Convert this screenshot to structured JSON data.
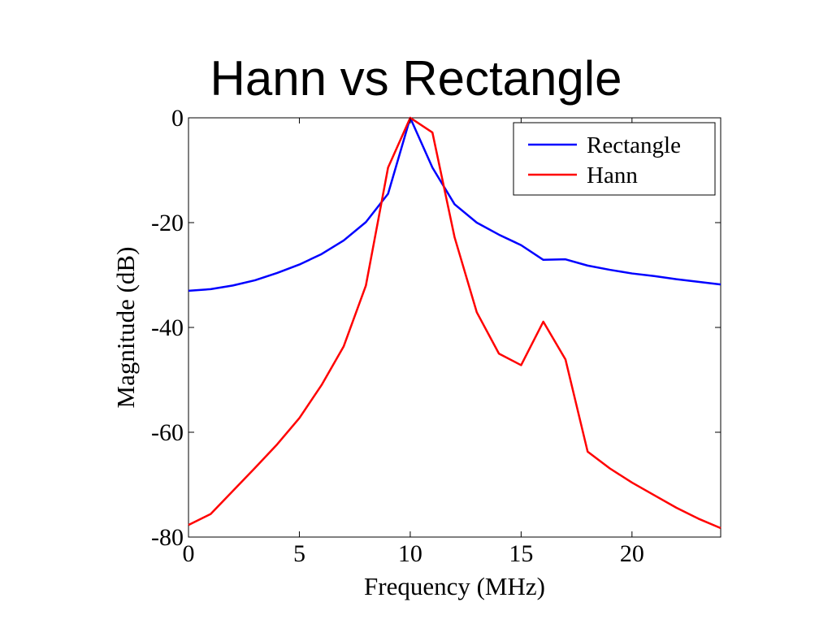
{
  "chart_data": {
    "type": "line",
    "title": "Hann vs Rectangle",
    "xlabel": "Frequency (MHz)",
    "ylabel": "Magnitude (dB)",
    "xlim": [
      0,
      24
    ],
    "ylim": [
      -80,
      0
    ],
    "xticks": [
      0,
      5,
      10,
      15,
      20
    ],
    "yticks": [
      0,
      -20,
      -40,
      -60,
      -80
    ],
    "grid": false,
    "legend_position": "top-right",
    "x": [
      0,
      1,
      2,
      3,
      4,
      5,
      6,
      7,
      8,
      9,
      10,
      11,
      12,
      13,
      14,
      15,
      16,
      17,
      18,
      19,
      20,
      21,
      22,
      23,
      24
    ],
    "series": [
      {
        "name": "Rectangle",
        "color": "#0000ff",
        "values": [
          -33.0,
          -32.7,
          -32.0,
          -31.0,
          -29.6,
          -28.0,
          -26.0,
          -23.4,
          -19.9,
          -14.5,
          0.0,
          -9.5,
          -16.5,
          -20.0,
          -22.3,
          -24.3,
          -27.1,
          -27.0,
          -28.2,
          -29.0,
          -29.7,
          -30.2,
          -30.8,
          -31.3,
          -31.8
        ]
      },
      {
        "name": "Hann",
        "color": "#ff0000",
        "values": [
          -77.7,
          -75.6,
          -71.2,
          -66.8,
          -62.3,
          -57.3,
          -51.0,
          -43.6,
          -32.0,
          -9.5,
          0.0,
          -2.8,
          -22.8,
          -37.1,
          -45.0,
          -47.2,
          -38.9,
          -46.1,
          -63.7,
          -66.9,
          -69.6,
          -72.0,
          -74.4,
          -76.5,
          -78.3
        ]
      }
    ]
  }
}
